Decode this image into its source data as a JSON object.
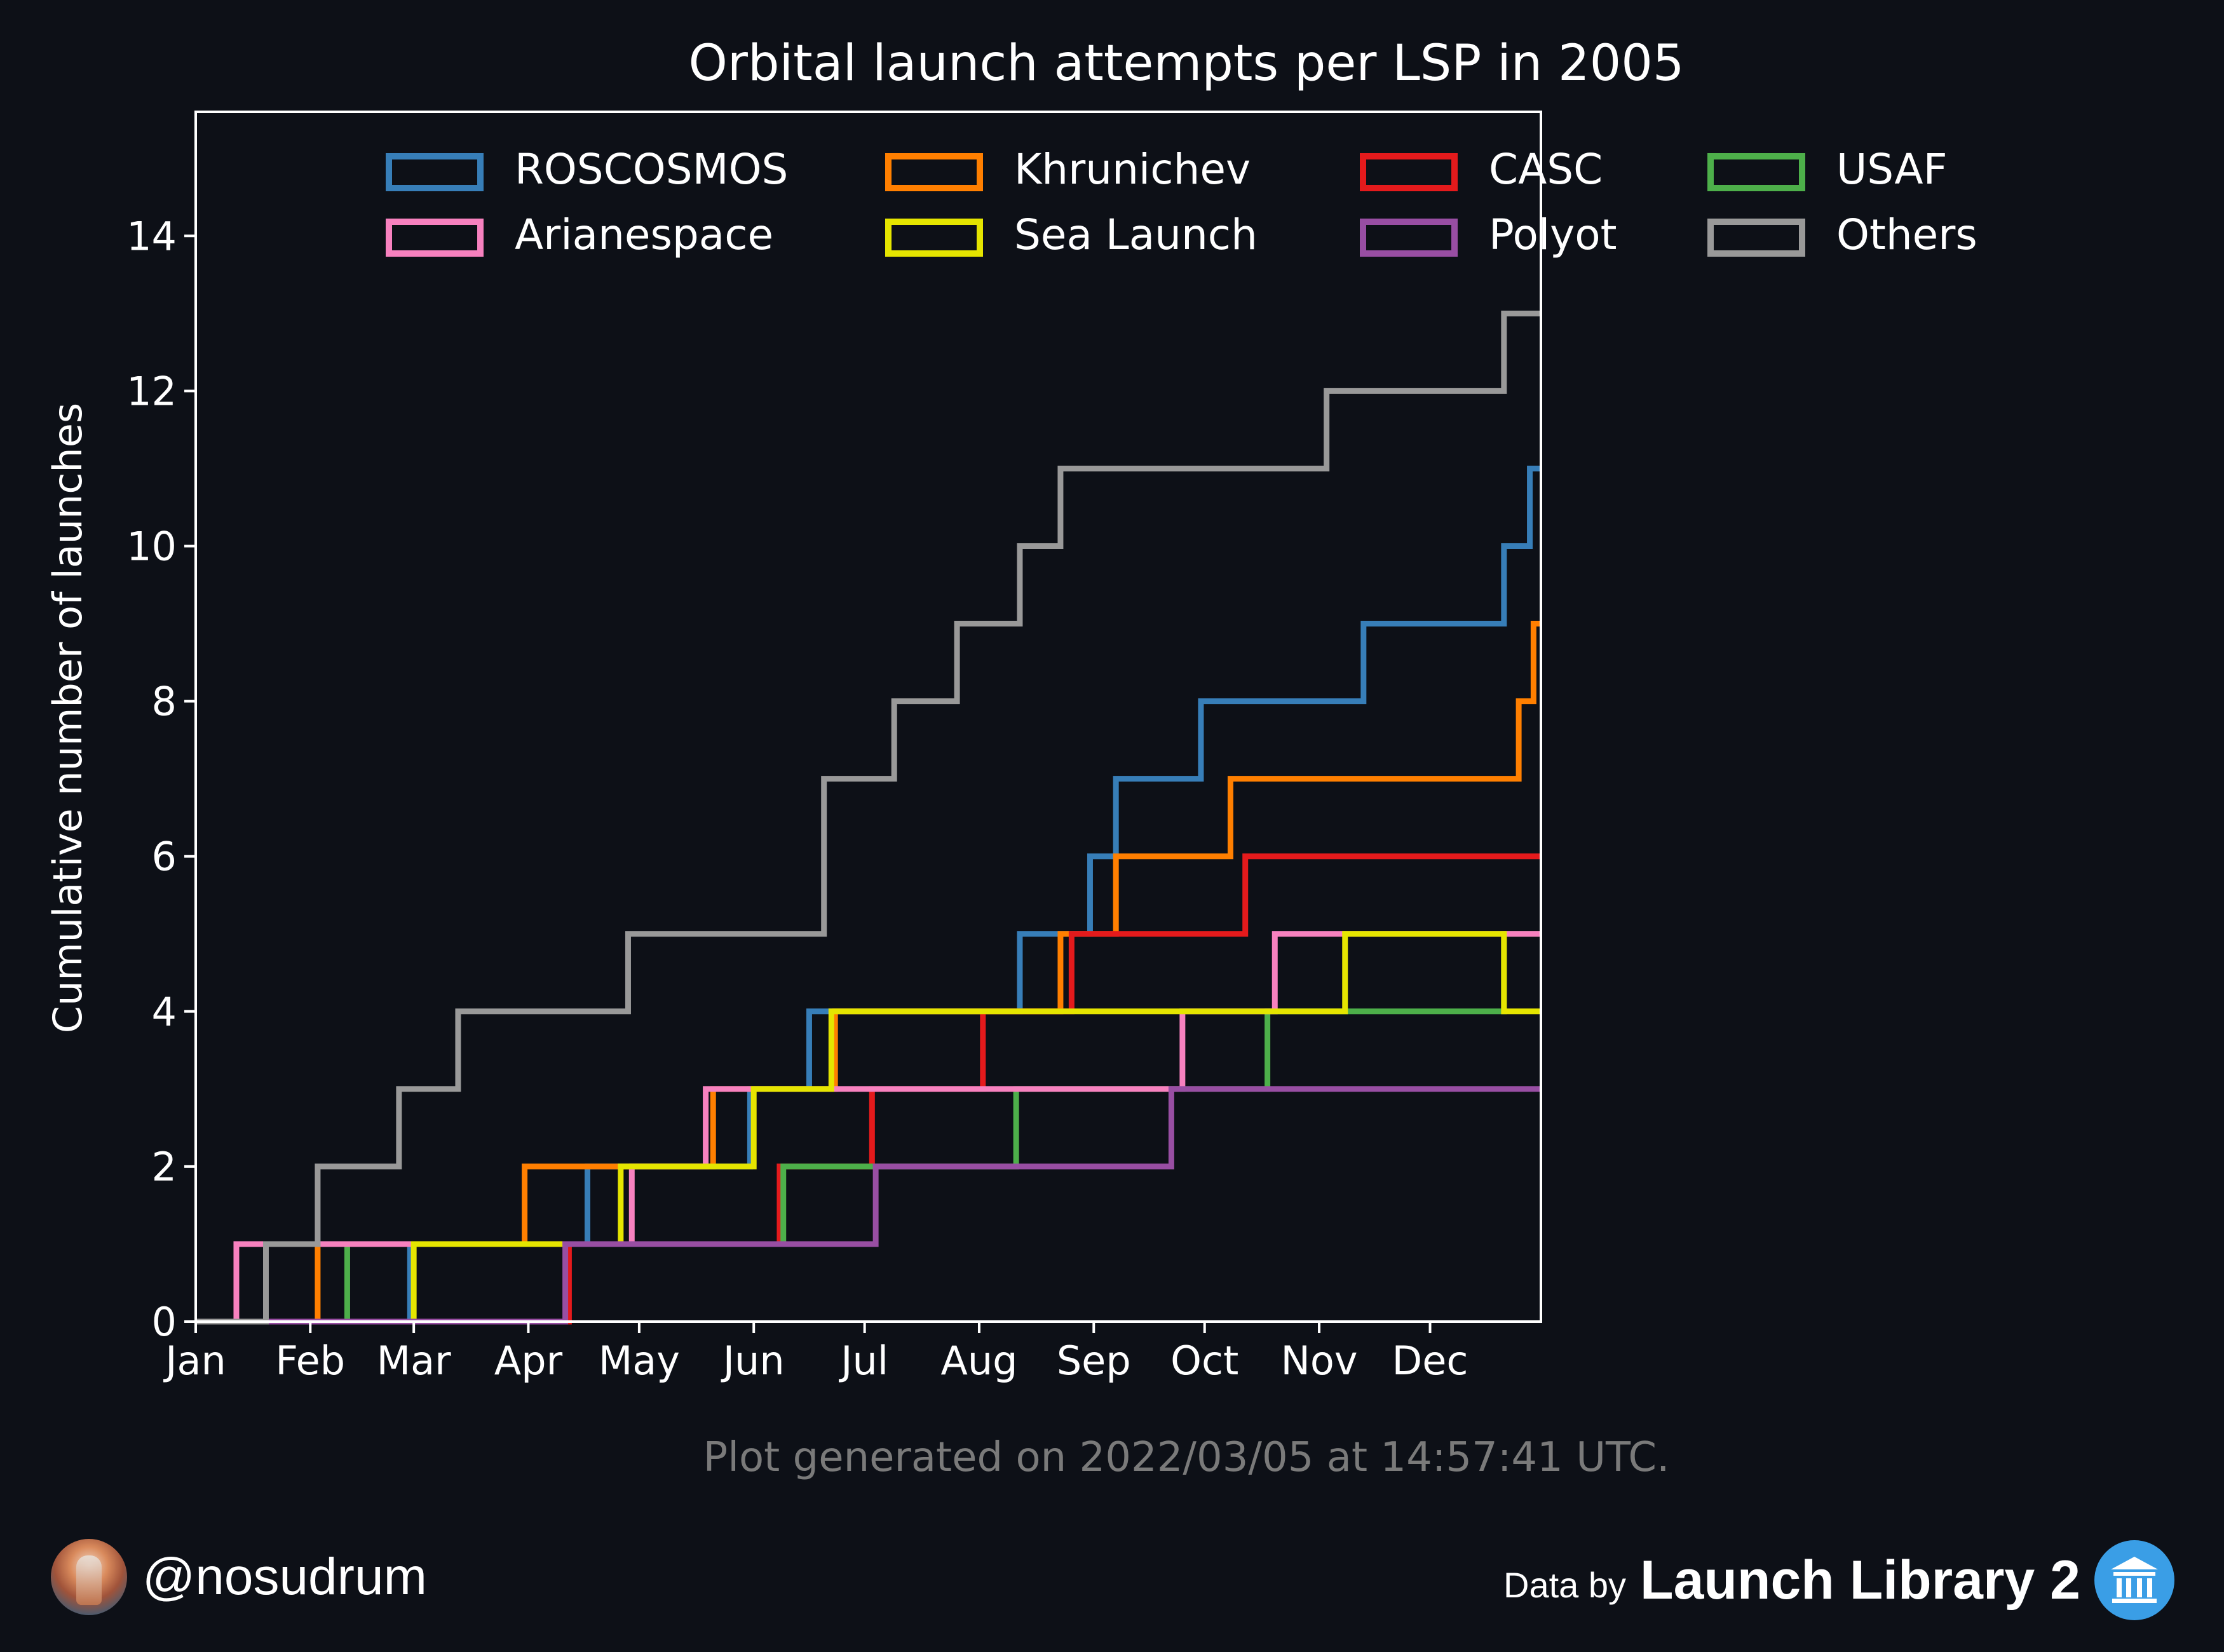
{
  "chart_data": {
    "type": "line",
    "step": "post",
    "title": "Orbital launch attempts per LSP in 2005",
    "xlabel": "",
    "ylabel": "Cumulative number of launches",
    "x_range": [
      "2005-01-01",
      "2005-12-31"
    ],
    "ylim": [
      0,
      15.6
    ],
    "yticks": [
      0,
      2,
      4,
      6,
      8,
      10,
      12,
      14
    ],
    "xticks": [
      {
        "date": "2005-01-01",
        "label": "Jan"
      },
      {
        "date": "2005-02-01",
        "label": "Feb"
      },
      {
        "date": "2005-03-01",
        "label": "Mar"
      },
      {
        "date": "2005-04-01",
        "label": "Apr"
      },
      {
        "date": "2005-05-01",
        "label": "May"
      },
      {
        "date": "2005-06-01",
        "label": "Jun"
      },
      {
        "date": "2005-07-01",
        "label": "Jul"
      },
      {
        "date": "2005-08-01",
        "label": "Aug"
      },
      {
        "date": "2005-09-01",
        "label": "Sep"
      },
      {
        "date": "2005-10-01",
        "label": "Oct"
      },
      {
        "date": "2005-11-01",
        "label": "Nov"
      },
      {
        "date": "2005-12-01",
        "label": "Dec"
      }
    ],
    "grid": false,
    "legend_position": "top",
    "series": [
      {
        "name": "ROSCOSMOS",
        "color": "#377eb8",
        "x": [
          "2005-01-01",
          "2005-02-28",
          "2005-04-17",
          "2005-05-31",
          "2005-06-16",
          "2005-08-12",
          "2005-08-31",
          "2005-09-07",
          "2005-09-30",
          "2005-11-13",
          "2005-12-21",
          "2005-12-28"
        ],
        "y": [
          0,
          1,
          2,
          3,
          4,
          5,
          6,
          7,
          8,
          9,
          10,
          11
        ]
      },
      {
        "name": "Khrunichev",
        "color": "#ff7f00",
        "x": [
          "2005-01-01",
          "2005-02-03",
          "2005-03-31",
          "2005-05-21",
          "2005-06-23",
          "2005-08-23",
          "2005-09-07",
          "2005-10-08",
          "2005-12-25",
          "2005-12-29"
        ],
        "y": [
          0,
          1,
          2,
          3,
          4,
          5,
          6,
          7,
          8,
          9
        ]
      },
      {
        "name": "CASC",
        "color": "#e41a1c",
        "x": [
          "2005-01-01",
          "2005-04-12",
          "2005-06-08",
          "2005-07-03",
          "2005-08-02",
          "2005-08-26",
          "2005-10-12"
        ],
        "y": [
          0,
          1,
          2,
          3,
          4,
          5,
          6
        ]
      },
      {
        "name": "USAF",
        "color": "#4daf4a",
        "x": [
          "2005-01-01",
          "2005-02-11",
          "2005-06-09",
          "2005-08-11",
          "2005-10-18",
          "2005-12-21"
        ],
        "y": [
          0,
          1,
          2,
          3,
          4,
          5
        ]
      },
      {
        "name": "Arianespace",
        "color": "#f781bf",
        "x": [
          "2005-01-01",
          "2005-01-12",
          "2005-04-29",
          "2005-05-19",
          "2005-09-25",
          "2005-10-20"
        ],
        "y": [
          0,
          1,
          2,
          3,
          4,
          5
        ]
      },
      {
        "name": "Sea Launch",
        "color": "#e5e500",
        "x": [
          "2005-01-01",
          "2005-03-01",
          "2005-04-26",
          "2005-06-01",
          "2005-06-22",
          "2005-11-08",
          "2005-12-21"
        ],
        "y": [
          0,
          1,
          2,
          3,
          4,
          5,
          4
        ]
      },
      {
        "name": "Polyot",
        "color": "#984ea3",
        "x": [
          "2005-01-01",
          "2005-04-11",
          "2005-07-04",
          "2005-09-22",
          "2005-11-15"
        ],
        "y": [
          0,
          1,
          2,
          3,
          3
        ]
      },
      {
        "name": "Others",
        "color": "#999999",
        "x": [
          "2005-01-01",
          "2005-01-20",
          "2005-02-03",
          "2005-02-25",
          "2005-03-13",
          "2005-04-28",
          "2005-06-20",
          "2005-07-09",
          "2005-07-26",
          "2005-08-12",
          "2005-08-23",
          "2005-11-03",
          "2005-12-21"
        ],
        "y": [
          0,
          1,
          2,
          3,
          4,
          5,
          7,
          8,
          9,
          10,
          11,
          12,
          13
        ]
      }
    ],
    "annotation": "Plot generated on 2022/03/05 at 14:57:41 UTC."
  },
  "footer": {
    "handle": "@nosudrum",
    "data_by": "Data by",
    "source_name": "Launch Library 2",
    "avatar_icon": "astronaut-avatar-icon",
    "source_icon": "launch-library-logo-icon"
  },
  "colors": {
    "background": "#0d1017",
    "text": "#ffffff",
    "annotation": "#7a7a7a"
  }
}
